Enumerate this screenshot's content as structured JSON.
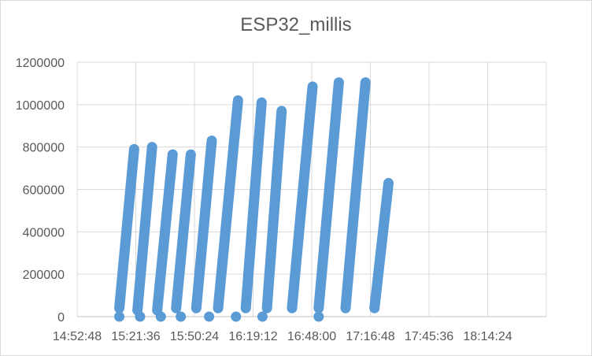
{
  "chart_data": {
    "type": "scatter",
    "title": "ESP32_millis",
    "xlabel": "",
    "ylabel": "",
    "x_tick_labels": [
      "14:52:48",
      "15:21:36",
      "15:50:24",
      "16:19:12",
      "16:48:00",
      "17:16:48",
      "17:45:36",
      "18:14:24"
    ],
    "x_tick_values_minutes": [
      892.8,
      921.6,
      950.4,
      979.2,
      1008.0,
      1036.8,
      1065.6,
      1094.4
    ],
    "xlim_minutes": [
      892.8,
      1123.2
    ],
    "y_tick_labels": [
      "0",
      "200000",
      "400000",
      "600000",
      "800000",
      "1000000",
      "1200000"
    ],
    "ylim": [
      0,
      1200000
    ],
    "grid": "vertical and horizontal",
    "legend": "none",
    "marker_color": "#5b9bd5",
    "segments": [
      {
        "x_start": 913.5,
        "y_start": 40000,
        "x_end": 920.8,
        "y_end": 790000
      },
      {
        "x_start": 922.4,
        "y_start": 30000,
        "x_end": 929.6,
        "y_end": 800000
      },
      {
        "x_start": 932.1,
        "y_start": 30000,
        "x_end": 939.7,
        "y_end": 765000
      },
      {
        "x_start": 941.4,
        "y_start": 40000,
        "x_end": 948.6,
        "y_end": 765000
      },
      {
        "x_start": 951.3,
        "y_start": 40000,
        "x_end": 958.9,
        "y_end": 830000
      },
      {
        "x_start": 962.0,
        "y_start": 40000,
        "x_end": 971.8,
        "y_end": 1020000
      },
      {
        "x_start": 975.6,
        "y_start": 40000,
        "x_end": 983.4,
        "y_end": 1010000
      },
      {
        "x_start": 986.0,
        "y_start": 40000,
        "x_end": 993.2,
        "y_end": 970000
      },
      {
        "x_start": 998.3,
        "y_start": 40000,
        "x_end": 1008.4,
        "y_end": 1085000
      },
      {
        "x_start": 1011.4,
        "y_start": 40000,
        "x_end": 1021.3,
        "y_end": 1105000
      },
      {
        "x_start": 1024.6,
        "y_start": 40000,
        "x_end": 1034.4,
        "y_end": 1105000
      },
      {
        "x_start": 1038.8,
        "y_start": 40000,
        "x_end": 1045.7,
        "y_end": 630000
      }
    ],
    "zero_points_x": [
      913.5,
      923.7,
      933.9,
      943.7,
      957.6,
      970.8,
      983.8,
      1011.4
    ]
  }
}
